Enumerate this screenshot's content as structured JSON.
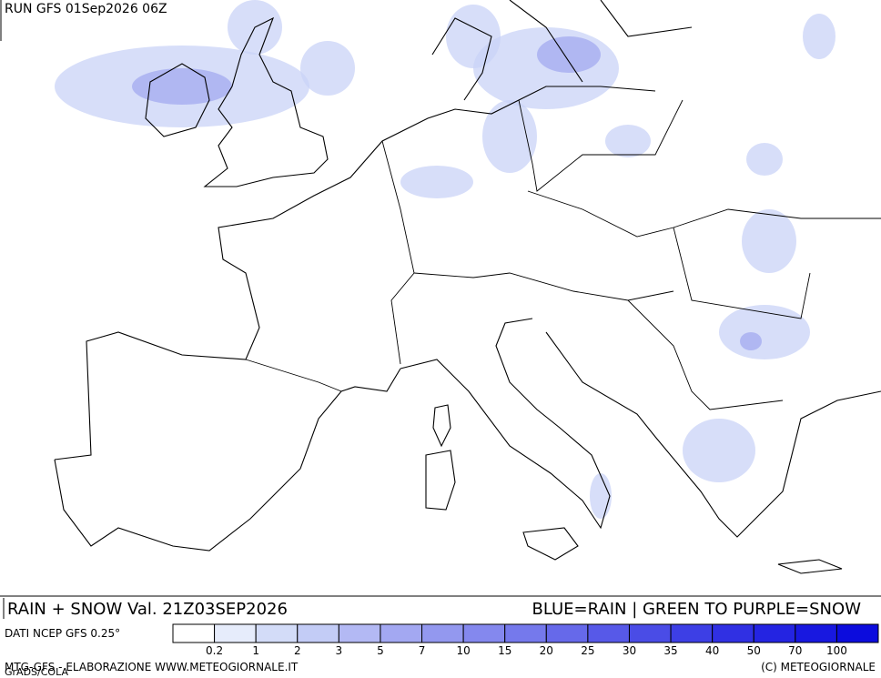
{
  "header": {
    "run": "RUN GFS 01Sep2026 06Z"
  },
  "footer": {
    "title": "RAIN + SNOW Val. 21Z03SEP2026",
    "legend_note": "BLUE=RAIN | GREEN TO PURPLE=SNOW",
    "source": "DATI NCEP GFS 0.25°",
    "credit_left": "MTG-GFS - ELABORAZIONE WWW.METEOGIORNALE.IT",
    "grads": "GrADS/COLA",
    "credit_right": "(C) METEOGIORNALE"
  },
  "colorbar": {
    "labels": [
      0.2,
      1,
      2,
      3,
      5,
      7,
      10,
      15,
      20,
      25,
      30,
      35,
      40,
      50,
      70,
      100
    ],
    "colors": [
      "#ffffff",
      "#e6ecfb",
      "#d3dcf8",
      "#c3ccf6",
      "#b3b9f4",
      "#a3a8f2",
      "#9398ef",
      "#8488ee",
      "#7579ec",
      "#6669ea",
      "#5759e8",
      "#4a4ce6",
      "#3d3fe5",
      "#3030e3",
      "#2424e2",
      "#1818e0",
      "#0c0cdd"
    ]
  }
}
